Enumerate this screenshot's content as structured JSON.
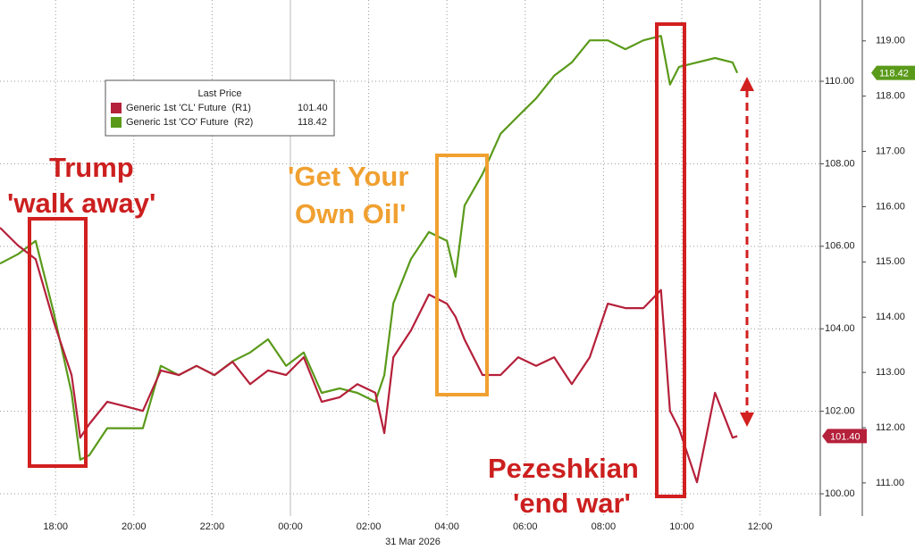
{
  "chart_data": {
    "type": "line",
    "xlabel": "31 Mar 2026",
    "x": [
      16.58,
      17.04,
      17.49,
      17.95,
      18.41,
      18.63,
      18.86,
      19.32,
      19.78,
      20.23,
      20.69,
      21.15,
      21.6,
      22.06,
      22.52,
      22.97,
      23.43,
      23.89,
      24.34,
      24.8,
      25.26,
      25.71,
      26.17,
      26.4,
      26.63,
      27.08,
      27.54,
      28.0,
      28.22,
      28.45,
      28.91,
      29.37,
      29.82,
      30.28,
      30.74,
      31.19,
      31.65,
      32.11,
      32.56,
      33.02,
      33.47,
      33.7,
      33.93,
      34.39,
      34.85,
      35.3,
      35.42
    ],
    "xlim": [
      16.58,
      37.54
    ],
    "xticks": [
      {
        "value": 18,
        "label": "18:00"
      },
      {
        "value": 20,
        "label": "20:00"
      },
      {
        "value": 22,
        "label": "22:00"
      },
      {
        "value": 24,
        "label": "00:00"
      },
      {
        "value": 26,
        "label": "02:00"
      },
      {
        "value": 28,
        "label": "04:00"
      },
      {
        "value": 30,
        "label": "06:00"
      },
      {
        "value": 32,
        "label": "08:00"
      },
      {
        "value": 34,
        "label": "10:00"
      },
      {
        "value": 36,
        "label": "12:00"
      }
    ],
    "ylim": [
      99.46,
      111.97
    ],
    "yticks": [
      {
        "value": 100,
        "label": "100.00"
      },
      {
        "value": 102,
        "label": "102.00"
      },
      {
        "value": 104,
        "label": "104.00"
      },
      {
        "value": 106,
        "label": "106.00"
      },
      {
        "value": 108,
        "label": "108.00"
      },
      {
        "value": 110,
        "label": "110.00"
      }
    ],
    "y2lim": [
      110.4,
      119.74
    ],
    "y2ticks": [
      {
        "value": 111,
        "label": "111.00"
      },
      {
        "value": 112,
        "label": "112.00"
      },
      {
        "value": 113,
        "label": "113.00"
      },
      {
        "value": 114,
        "label": "114.00"
      },
      {
        "value": 115,
        "label": "115.00"
      },
      {
        "value": 116,
        "label": "116.00"
      },
      {
        "value": 117,
        "label": "117.00"
      },
      {
        "value": 118,
        "label": "118.00"
      },
      {
        "value": 119,
        "label": "119.00"
      }
    ],
    "grid": true,
    "legend_title": "Last Price",
    "series": [
      {
        "name": "Generic 1st 'CO' Future  (R2)",
        "color": "#5a9a1a",
        "axis": "y2",
        "last_value_label": "118.42",
        "values": [
          114.97,
          115.14,
          115.38,
          114.09,
          112.63,
          111.42,
          111.5,
          111.99,
          111.99,
          111.99,
          113.12,
          112.95,
          113.12,
          112.95,
          113.2,
          113.36,
          113.6,
          113.12,
          113.36,
          112.63,
          112.71,
          112.63,
          112.47,
          112.95,
          114.25,
          115.05,
          115.54,
          115.38,
          114.73,
          116.02,
          116.59,
          117.32,
          117.64,
          117.96,
          118.37,
          118.61,
          119.01,
          119.01,
          118.85,
          119.01,
          119.09,
          118.21,
          118.53,
          118.61,
          118.69,
          118.61,
          118.42
        ]
      },
      {
        "name": "Generic 1st 'CL' Future  (R1)",
        "color": "#b5203a",
        "axis": "y",
        "last_value_label": "101.40",
        "values": [
          106.45,
          106.02,
          105.69,
          104.18,
          102.88,
          101.36,
          101.69,
          102.23,
          102.12,
          102.01,
          102.99,
          102.88,
          103.1,
          102.88,
          103.2,
          102.66,
          102.99,
          102.88,
          103.31,
          102.23,
          102.34,
          102.66,
          102.45,
          101.47,
          103.31,
          103.96,
          104.83,
          104.61,
          104.29,
          103.74,
          102.88,
          102.88,
          103.31,
          103.1,
          103.31,
          102.66,
          103.31,
          104.61,
          104.5,
          104.5,
          104.94,
          102.01,
          101.58,
          100.28,
          102.45,
          101.36,
          101.4
        ]
      }
    ],
    "annotations": [
      {
        "lines": [
          "Trump",
          "'walk away'"
        ],
        "color": "#cc1f1f"
      },
      {
        "lines": [
          "'Get Your",
          "Own Oil'"
        ],
        "color": "#f0a030"
      },
      {
        "lines": [
          "Pezeshkian",
          "'end war'"
        ],
        "color": "#cc1f1f"
      }
    ]
  }
}
